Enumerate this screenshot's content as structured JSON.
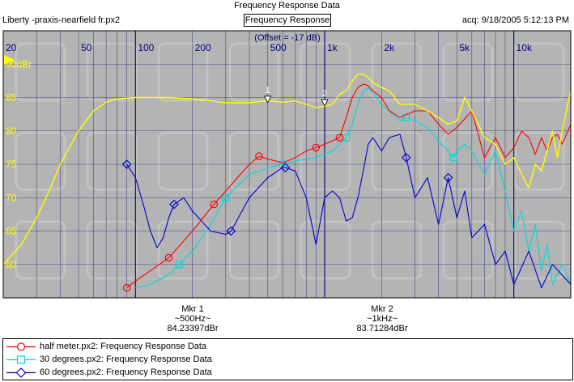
{
  "window": {
    "title": "Frequency Response Data"
  },
  "header": {
    "software": "Liberty -praxis-",
    "file": "nearfield fr.px2",
    "tab": "Frequency Response",
    "acq": "acq: 9/18/2005 5:12:13 PM"
  },
  "chart_data": {
    "type": "line",
    "xscale": "log",
    "xlim": [
      20,
      20000
    ],
    "ylim": [
      55,
      95
    ],
    "x_tick_labels": [
      {
        "x": 20,
        "label": "20"
      },
      {
        "x": 50,
        "label": "50"
      },
      {
        "x": 100,
        "label": "100"
      },
      {
        "x": 200,
        "label": "200"
      },
      {
        "x": 500,
        "label": "500"
      },
      {
        "x": 1000,
        "label": "1k"
      },
      {
        "x": 2000,
        "label": "2k"
      },
      {
        "x": 5000,
        "label": "5k"
      },
      {
        "x": 10000,
        "label": "10k"
      }
    ],
    "y_tick_labels": [
      {
        "y": 90,
        "label": "90dBr"
      },
      {
        "y": 85,
        "label": "85"
      },
      {
        "y": 80,
        "label": "80"
      },
      {
        "y": 75,
        "label": "75"
      },
      {
        "y": 70,
        "label": "70"
      },
      {
        "y": 65,
        "label": "65"
      },
      {
        "y": 60,
        "label": "60"
      }
    ],
    "offset_note": "(Offset = -17 dB)",
    "series": [
      {
        "name": "half meter.px2:  Frequency Response Data",
        "color": "#ff0000",
        "marker": "circle",
        "markers_x": [
          90,
          150,
          260,
          450,
          900,
          1200
        ],
        "x": [
          90,
          100,
          150,
          200,
          260,
          300,
          400,
          450,
          500,
          600,
          700,
          800,
          900,
          1000,
          1100,
          1200,
          1300,
          1400,
          1500,
          1600,
          1700,
          1800,
          2000,
          2200,
          2500,
          3000,
          3500,
          4000,
          4500,
          5000,
          6000,
          7000,
          8000,
          9000,
          10000,
          11000,
          12000,
          13000,
          14000,
          15000,
          16000,
          17000,
          18000,
          20000
        ],
        "y": [
          56.5,
          57.5,
          61,
          65,
          69,
          71,
          75,
          76.2,
          75.8,
          75.2,
          76,
          77,
          77.5,
          78,
          78.5,
          79,
          82,
          85,
          86.5,
          87,
          86.8,
          86,
          85,
          83,
          82,
          83,
          83,
          81,
          79.5,
          80.5,
          83,
          76,
          79,
          76,
          77.5,
          80,
          79,
          76.5,
          79,
          77,
          79,
          79.5,
          78,
          81
        ]
      },
      {
        "name": "30 degrees.px2:  Frequency Response Data",
        "color": "#00d8d8",
        "marker": "square",
        "markers_x": [
          170,
          300,
          600,
          1300,
          2700,
          4800
        ],
        "x": [
          100,
          120,
          150,
          170,
          200,
          250,
          300,
          400,
          500,
          600,
          700,
          800,
          900,
          1000,
          1100,
          1200,
          1300,
          1400,
          1500,
          1600,
          1700,
          2000,
          2500,
          2700,
          3000,
          3500,
          4000,
          4500,
          4800,
          5000,
          5500,
          6000,
          7000,
          8000,
          9000,
          10000,
          11000,
          12000,
          13000,
          14000,
          15000,
          16000,
          18000,
          20000
        ],
        "y": [
          56.5,
          57,
          58.5,
          60,
          62,
          66,
          70,
          73.5,
          74.5,
          75,
          75.5,
          75.8,
          76,
          76.5,
          77,
          78,
          79,
          81,
          84,
          86,
          86.5,
          84,
          81.5,
          82,
          81.5,
          80.5,
          78.5,
          77,
          76,
          77,
          78,
          77,
          73.5,
          77,
          71,
          65,
          68,
          62,
          66,
          59,
          63,
          57,
          60,
          57
        ]
      },
      {
        "name": "60 degrees.px2:  Frequency Response Data",
        "color": "#0000cc",
        "marker": "diamond",
        "markers_x": [
          90,
          160,
          320,
          620,
          2700,
          4500
        ],
        "x": [
          90,
          100,
          110,
          120,
          130,
          140,
          150,
          160,
          180,
          200,
          250,
          300,
          320,
          400,
          500,
          600,
          620,
          700,
          800,
          900,
          1000,
          1100,
          1200,
          1300,
          1400,
          1500,
          1600,
          1700,
          1800,
          2000,
          2200,
          2500,
          2700,
          3000,
          3500,
          4000,
          4500,
          5000,
          5500,
          6000,
          7000,
          8000,
          9000,
          10000,
          12000,
          14000,
          16000,
          20000
        ],
        "y": [
          75,
          73,
          69,
          65,
          62.5,
          64,
          67,
          69,
          70,
          68,
          65,
          64.5,
          65,
          70,
          73,
          74.5,
          74.5,
          74,
          70,
          63,
          70,
          71,
          70,
          66.5,
          67,
          70,
          74,
          78,
          79,
          77,
          79,
          79.5,
          76,
          70,
          73,
          66,
          73,
          67,
          71,
          64,
          66,
          60,
          62,
          57,
          62,
          56.5,
          60,
          57
        ]
      },
      {
        "name": "",
        "color": "#ffff00",
        "marker": "none",
        "x": [
          20,
          25,
          30,
          35,
          40,
          50,
          60,
          70,
          80,
          100,
          120,
          150,
          200,
          250,
          300,
          400,
          500,
          600,
          700,
          800,
          900,
          1000,
          1100,
          1200,
          1300,
          1400,
          1500,
          1600,
          1700,
          1800,
          2000,
          2200,
          2500,
          3000,
          3500,
          4000,
          4500,
          5000,
          5500,
          6000,
          7000,
          8000,
          9000,
          10000,
          11000,
          12000,
          13000,
          14000,
          15000,
          16000,
          17000,
          18000,
          20000
        ],
        "y": [
          60,
          63,
          67,
          71,
          75,
          80,
          83,
          84.3,
          84.8,
          85,
          85,
          85,
          84.8,
          84.5,
          84.2,
          84.2,
          84.5,
          84.3,
          84.5,
          84,
          83.5,
          83.7,
          84,
          85.5,
          86,
          87.5,
          88.5,
          88.5,
          88,
          87.2,
          86.5,
          86,
          84,
          84,
          83,
          82,
          81,
          81.5,
          85,
          83,
          79,
          78,
          75,
          76,
          73.5,
          71.5,
          75,
          74,
          77,
          80,
          76,
          80,
          86
        ]
      }
    ],
    "markers": [
      {
        "id": "1",
        "x": 500,
        "y": 84.23397,
        "label": "Mkr 1",
        "freq": "~500Hz~",
        "value": "84.23397dBr"
      },
      {
        "id": "2",
        "x": 1000,
        "y": 83.71284,
        "label": "Mkr 2",
        "freq": "~1kHz~",
        "value": "83.71284dBr"
      }
    ],
    "legend_placement": "bottom"
  },
  "colors": {
    "plot_background": "#b4b4b4",
    "grid": "#000066",
    "frame": "#000000"
  }
}
